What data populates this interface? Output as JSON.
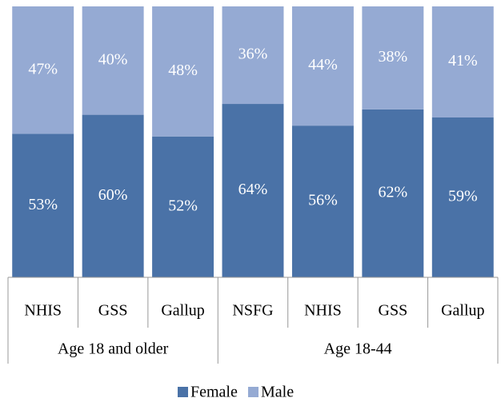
{
  "chart_data": {
    "type": "stacked_bar",
    "groups": [
      {
        "label": "Age 18 and older",
        "categories": [
          "NHIS",
          "GSS",
          "Gallup"
        ]
      },
      {
        "label": "Age 18-44",
        "categories": [
          "NSFG",
          "NHIS",
          "GSS",
          "Gallup"
        ]
      }
    ],
    "series": [
      {
        "name": "Female",
        "color": "#4a72a7",
        "values": [
          53,
          60,
          52,
          64,
          56,
          62,
          59
        ],
        "value_labels": [
          "53%",
          "60%",
          "52%",
          "64%",
          "56%",
          "62%",
          "59%"
        ]
      },
      {
        "name": "Male",
        "color": "#95aad3",
        "values": [
          47,
          40,
          48,
          36,
          44,
          38,
          41
        ],
        "value_labels": [
          "47%",
          "40%",
          "48%",
          "36%",
          "44%",
          "38%",
          "41%"
        ]
      }
    ],
    "ylim": [
      0,
      100
    ],
    "legend": "bottom"
  }
}
